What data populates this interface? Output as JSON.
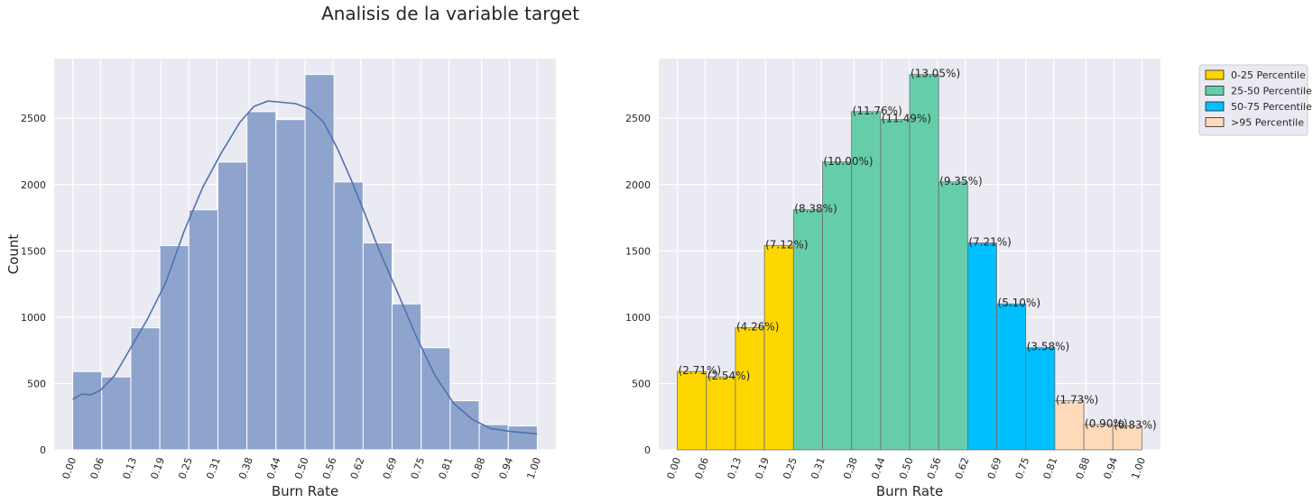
{
  "suptitle": "Analisis de la variable target",
  "chart_data": [
    {
      "type": "bar",
      "subtype": "histogram-with-kde",
      "title": "",
      "xlabel": "Burn Rate",
      "ylabel": "Count",
      "x_ticks": [
        "0.00",
        "0.06",
        "0.13",
        "0.19",
        "0.25",
        "0.31",
        "0.38",
        "0.44",
        "0.50",
        "0.56",
        "0.62",
        "0.69",
        "0.75",
        "0.81",
        "0.88",
        "0.94",
        "1.00"
      ],
      "y_ticks": [
        "0",
        "500",
        "1000",
        "1500",
        "2000",
        "2500"
      ],
      "xlim": [
        -0.04,
        1.04
      ],
      "ylim": [
        0,
        2950
      ],
      "bin_edges": [
        0.0,
        0.0625,
        0.125,
        0.1875,
        0.25,
        0.3125,
        0.375,
        0.4375,
        0.5,
        0.5625,
        0.625,
        0.6875,
        0.75,
        0.8125,
        0.875,
        0.9375,
        1.0
      ],
      "values": [
        590,
        550,
        920,
        1540,
        1810,
        2170,
        2550,
        2490,
        2830,
        2020,
        1560,
        1100,
        770,
        370,
        190,
        180
      ],
      "bar_color": "#8fa4cd",
      "kde_color": "#4c72b0",
      "kde": {
        "x": [
          0.0,
          0.02,
          0.04,
          0.06,
          0.09,
          0.12,
          0.16,
          0.2,
          0.24,
          0.28,
          0.32,
          0.36,
          0.39,
          0.42,
          0.45,
          0.48,
          0.51,
          0.54,
          0.57,
          0.6,
          0.63,
          0.66,
          0.7,
          0.74,
          0.78,
          0.82,
          0.86,
          0.9,
          0.94,
          0.97,
          1.0
        ],
        "y": [
          380,
          420,
          415,
          450,
          560,
          740,
          980,
          1260,
          1650,
          1980,
          2240,
          2470,
          2590,
          2630,
          2620,
          2610,
          2570,
          2470,
          2270,
          2030,
          1770,
          1500,
          1180,
          850,
          560,
          350,
          230,
          160,
          140,
          130,
          120
        ]
      },
      "grid": true,
      "background": "#eaeaf2"
    },
    {
      "type": "bar",
      "subtype": "histogram-percentile-colored",
      "title": "",
      "xlabel": "Burn Rate",
      "ylabel": "",
      "x_ticks": [
        "0.00",
        "0.06",
        "0.13",
        "0.19",
        "0.25",
        "0.31",
        "0.38",
        "0.44",
        "0.50",
        "0.56",
        "0.62",
        "0.69",
        "0.75",
        "0.81",
        "0.88",
        "0.94",
        "1.00"
      ],
      "y_ticks": [
        "0",
        "500",
        "1000",
        "1500",
        "2000",
        "2500"
      ],
      "xlim": [
        -0.04,
        1.04
      ],
      "ylim": [
        0,
        2950
      ],
      "bin_edges": [
        0.0,
        0.0625,
        0.125,
        0.1875,
        0.25,
        0.3125,
        0.375,
        0.4375,
        0.5,
        0.5625,
        0.625,
        0.6875,
        0.75,
        0.8125,
        0.875,
        0.9375,
        1.0
      ],
      "values": [
        590,
        550,
        920,
        1540,
        1810,
        2170,
        2550,
        2490,
        2830,
        2020,
        1560,
        1100,
        770,
        370,
        190,
        180
      ],
      "percent_labels": [
        "(2.71%)",
        "(2.54%)",
        "(4.26%)",
        "(7.12%)",
        "(8.38%)",
        "(10.00%)",
        "(11.76%)",
        "(11.49%)",
        "(13.05%)",
        "(9.35%)",
        "(7.21%)",
        "(5.10%)",
        "(3.58%)",
        "(1.73%)",
        "(0.90%)",
        "(0.83%)"
      ],
      "bar_groups": [
        0,
        0,
        0,
        0,
        1,
        1,
        1,
        1,
        1,
        1,
        2,
        2,
        2,
        3,
        3,
        3
      ],
      "legend": {
        "placement": "upper right outside",
        "entries": [
          {
            "label": "0-25 Percentile",
            "color": "#ffd700"
          },
          {
            "label": "25-50 Percentile",
            "color": "#66cdaa"
          },
          {
            "label": "50-75 Percentile",
            "color": "#00bfff"
          },
          {
            "label": ">95 Percentile",
            "color": "#ffdab9"
          }
        ]
      },
      "grid": true,
      "background": "#eaeaf2"
    }
  ]
}
